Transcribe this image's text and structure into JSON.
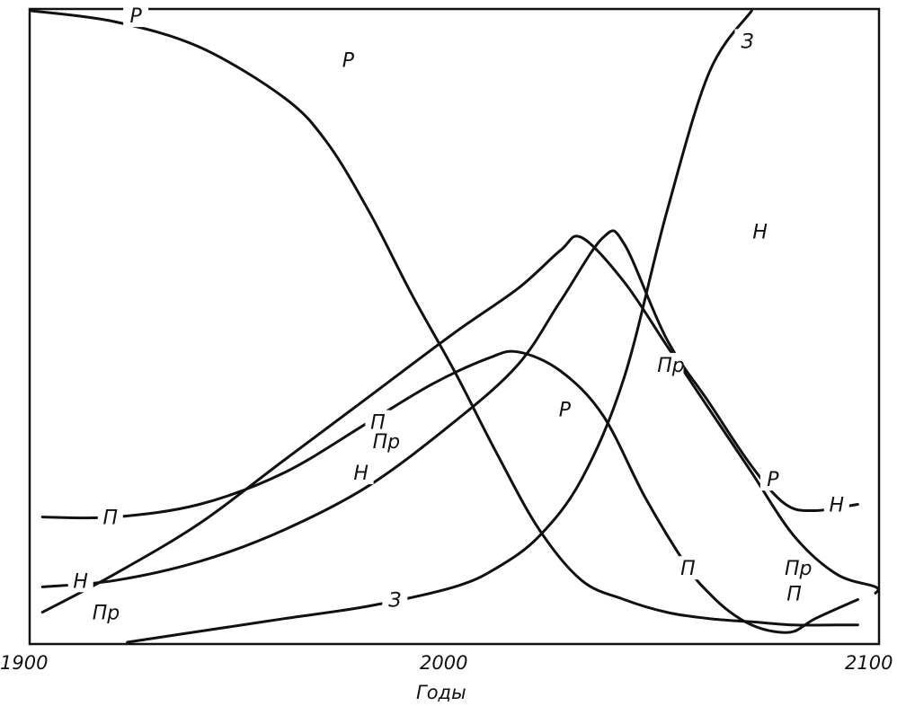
{
  "colors": {
    "ink": "#111111",
    "background": "#ffffff"
  },
  "chart_data": {
    "type": "line",
    "title": "",
    "xlabel": "Годы",
    "ylabel": "",
    "xlim": [
      1900,
      2100
    ],
    "ylim": [
      0,
      100
    ],
    "xticks": [
      "1900",
      "2000",
      "2100"
    ],
    "grid": false,
    "legend": "none",
    "series": [
      {
        "name": "Р",
        "points": [
          [
            1900,
            100
          ],
          [
            1920,
            98
          ],
          [
            1940,
            94
          ],
          [
            1960,
            86
          ],
          [
            1970,
            79
          ],
          [
            1980,
            68
          ],
          [
            1990,
            55
          ],
          [
            2000,
            43
          ],
          [
            2010,
            30
          ],
          [
            2020,
            18
          ],
          [
            2030,
            10
          ],
          [
            2040,
            7
          ],
          [
            2050,
            5
          ],
          [
            2060,
            4
          ],
          [
            2070,
            3.5
          ],
          [
            2080,
            3
          ],
          [
            2090,
            3
          ],
          [
            2095,
            3
          ]
        ],
        "labels": [
          [
            1925,
            99
          ],
          [
            1975,
            92
          ],
          [
            2026,
            37
          ],
          [
            2075,
            26
          ]
        ]
      },
      {
        "name": "П",
        "points": [
          [
            1903,
            20
          ],
          [
            1920,
            20
          ],
          [
            1940,
            22
          ],
          [
            1960,
            27
          ],
          [
            1980,
            35
          ],
          [
            1995,
            41
          ],
          [
            2008,
            45
          ],
          [
            2015,
            46
          ],
          [
            2025,
            43
          ],
          [
            2035,
            36
          ],
          [
            2045,
            23
          ],
          [
            2055,
            12
          ],
          [
            2060,
            8
          ],
          [
            2065,
            5
          ],
          [
            2070,
            3
          ],
          [
            2075,
            2
          ],
          [
            2080,
            2
          ],
          [
            2085,
            4
          ],
          [
            2095,
            7
          ]
        ],
        "labels": [
          [
            1919,
            20
          ],
          [
            1982,
            35
          ],
          [
            2055,
            12
          ],
          [
            2080,
            8
          ]
        ]
      },
      {
        "name": "Пр",
        "points": [
          [
            1903,
            5
          ],
          [
            1920,
            11
          ],
          [
            1940,
            19
          ],
          [
            1960,
            29
          ],
          [
            1980,
            39
          ],
          [
            2000,
            49
          ],
          [
            2015,
            56
          ],
          [
            2025,
            62
          ],
          [
            2030,
            64
          ],
          [
            2040,
            57
          ],
          [
            2050,
            47
          ],
          [
            2060,
            37
          ],
          [
            2070,
            27
          ],
          [
            2080,
            17
          ],
          [
            2090,
            11
          ],
          [
            2100,
            9
          ],
          [
            2105,
            8
          ]
        ],
        "labels": [
          [
            1918,
            5
          ],
          [
            1984,
            32
          ],
          [
            2051,
            44
          ],
          [
            2081,
            12
          ]
        ]
      },
      {
        "name": "Н",
        "points": [
          [
            1903,
            9
          ],
          [
            1920,
            10
          ],
          [
            1940,
            13
          ],
          [
            1960,
            18
          ],
          [
            1980,
            25
          ],
          [
            2000,
            35
          ],
          [
            2015,
            44
          ],
          [
            2025,
            54
          ],
          [
            2035,
            64
          ],
          [
            2040,
            63
          ],
          [
            2050,
            48
          ],
          [
            2060,
            38
          ],
          [
            2070,
            28
          ],
          [
            2078,
            22
          ],
          [
            2085,
            21
          ],
          [
            2095,
            22
          ]
        ],
        "labels": [
          [
            1912,
            10
          ],
          [
            1978,
            27
          ],
          [
            2072,
            65
          ],
          [
            2090,
            22
          ]
        ]
      },
      {
        "name": "З",
        "points": [
          [
            1923,
            0
          ],
          [
            1940,
            2
          ],
          [
            1960,
            4
          ],
          [
            1980,
            6
          ],
          [
            2000,
            9
          ],
          [
            2010,
            12
          ],
          [
            2020,
            17
          ],
          [
            2030,
            26
          ],
          [
            2040,
            42
          ],
          [
            2050,
            68
          ],
          [
            2060,
            90
          ],
          [
            2070,
            100
          ]
        ],
        "labels": [
          [
            1986,
            7
          ],
          [
            2069,
            95
          ]
        ]
      }
    ]
  }
}
